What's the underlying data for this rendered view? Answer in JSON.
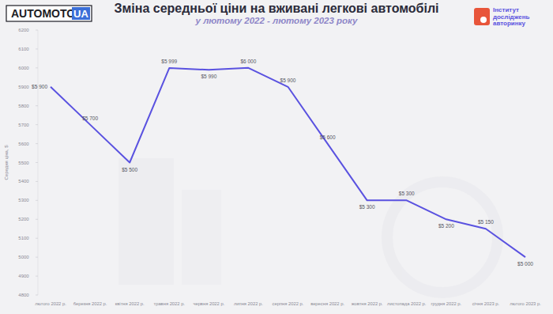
{
  "chart_data": {
    "type": "line",
    "title": "Зміна середньої ціни на вживані легкові автомобілі",
    "subtitle": "у лютому 2022 - лютому 2023 року",
    "y_label": "Середня ціна, $",
    "categories": [
      "лютого 2022 р.",
      "березня 2022 р.",
      "квітня 2022 р.",
      "травня 2022 р.",
      "червня 2022 р.",
      "липня 2022 р.",
      "серпня 2022 р.",
      "вересня 2022 р.",
      "жовтня 2022 р.",
      "листопада 2022 р.",
      "грудня 2022 р.",
      "січня 2023 р.",
      "лютого 2023 р."
    ],
    "values": [
      5900,
      5700,
      5500,
      5999,
      5990,
      6000,
      5900,
      5600,
      5300,
      5300,
      5200,
      5150,
      5000
    ],
    "value_labels": [
      "$5 900",
      "$5 700",
      "$5 500",
      "$5 999",
      "$5 990",
      "$6 000",
      "$5 900",
      "$5 600",
      "$5 300",
      "$5 300",
      "$5 200",
      "$5 150",
      "$5 000"
    ],
    "color": "#5a52e0",
    "ylim": [
      4800,
      6200
    ],
    "yticks": [
      4800,
      4900,
      5000,
      5100,
      5200,
      5300,
      5400,
      5500,
      5600,
      5700,
      5800,
      5900,
      6000,
      6100,
      6200
    ],
    "grid": false,
    "data_labels": true
  },
  "branding": {
    "left": [
      "AUTOMOTO",
      "UA"
    ],
    "right": [
      "Інститут",
      "досліджень",
      "авторинку"
    ]
  }
}
